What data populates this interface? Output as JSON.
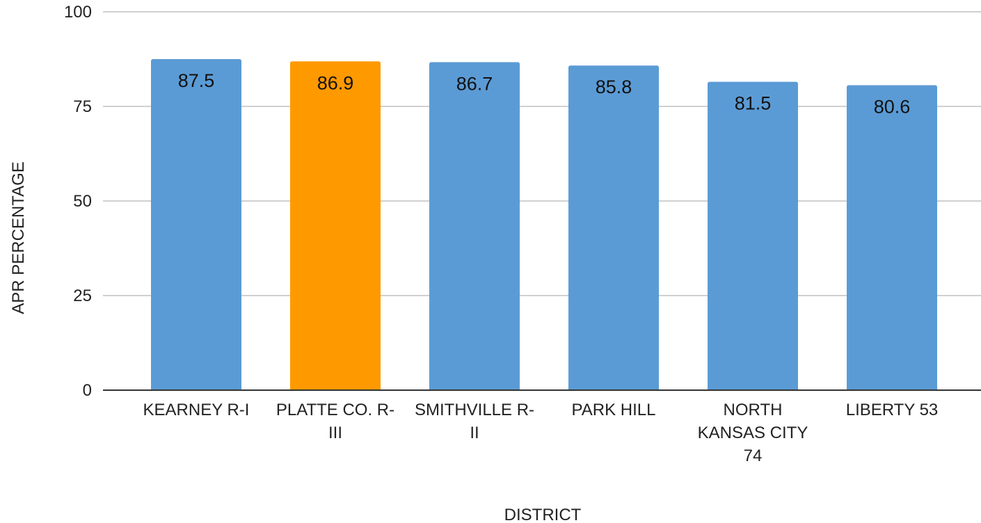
{
  "chart_data": {
    "type": "bar",
    "title": "",
    "xlabel": "DISTRICT",
    "ylabel": "APR PERCENTAGE",
    "ylim": [
      0,
      100
    ],
    "yticks": [
      0,
      25,
      50,
      75,
      100
    ],
    "grid": true,
    "legend": "none",
    "categories": [
      [
        "KEARNEY R-I"
      ],
      [
        "PLATTE CO. R-",
        "III"
      ],
      [
        "SMITHVILLE R-",
        "II"
      ],
      [
        "PARK HILL"
      ],
      [
        "NORTH",
        "KANSAS CITY",
        "74"
      ],
      [
        "LIBERTY 53"
      ]
    ],
    "values": [
      87.5,
      86.9,
      86.7,
      85.8,
      81.5,
      80.6
    ],
    "bar_colors": [
      "#5b9bd5",
      "#ff9900",
      "#5b9bd5",
      "#5b9bd5",
      "#5b9bd5",
      "#5b9bd5"
    ],
    "gridline_color": "#d0d0d0",
    "axis_color": "#333333"
  }
}
